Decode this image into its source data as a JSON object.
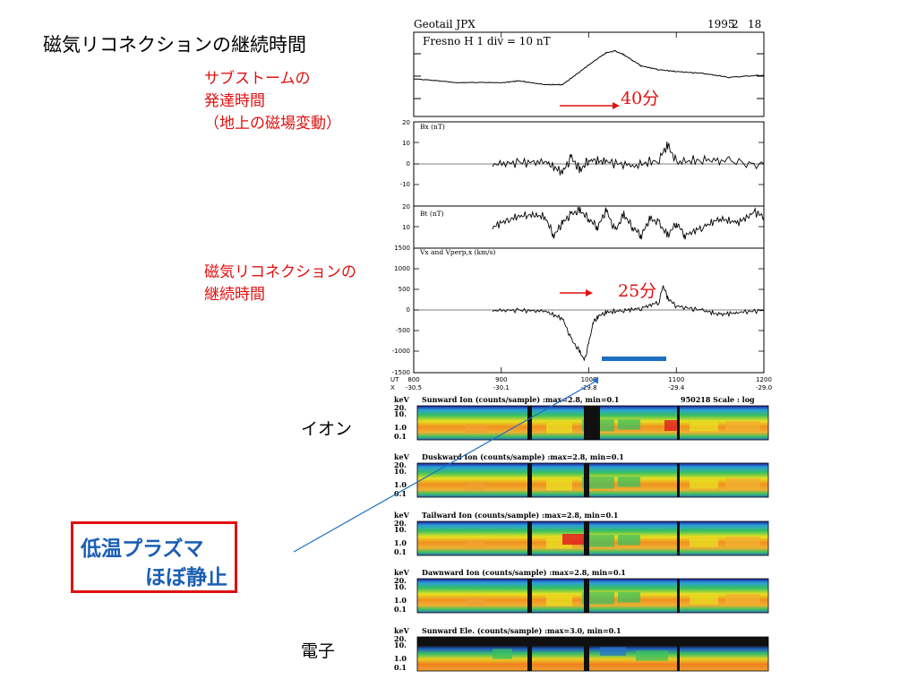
{
  "slide": {
    "title": "磁気リコネクションの継続時間",
    "notes": {
      "substorm_line1": "サブストームの",
      "substorm_line2": "発達時間",
      "substorm_line3": "（地上の磁場変動）",
      "reconnect_line1": "磁気リコネクションの",
      "reconnect_line2": "継続時間"
    },
    "duration_substorm": "40分",
    "duration_reconnect": "25分",
    "label_ion": "イオン",
    "label_electron": "電子",
    "callout_line1": "低温プラズマ",
    "callout_line2": "ほぼ静止"
  },
  "colors": {
    "red": "#e01010",
    "blue": "#1a5fb4",
    "bar_blue": "#1f6fc0"
  },
  "chart_data": [
    {
      "type": "line",
      "header_left": "Geotail   JPX",
      "header_year": "1995",
      "header_month": "2",
      "header_day": "18",
      "panel_label": "Fresno     H   1 div = 10 nT",
      "x": [
        800,
        850,
        900,
        920,
        950,
        970,
        990,
        1010,
        1020,
        1030,
        1040,
        1050,
        1060,
        1080,
        1100,
        1130,
        1160,
        1200
      ],
      "series": [
        {
          "values": [
            0,
            -2,
            -2,
            -1,
            -3,
            -3,
            4,
            11,
            14,
            15,
            13,
            10,
            7,
            5,
            4,
            3,
            1,
            2
          ]
        }
      ],
      "ylim": [
        -20,
        25
      ]
    },
    {
      "type": "line",
      "panel_label": "Bx (nT)",
      "yticks": [
        "20",
        "10",
        "0",
        "-10"
      ],
      "ylim": [
        -20,
        20
      ],
      "x": [
        890,
        920,
        950,
        970,
        980,
        990,
        1000,
        1020,
        1050,
        1080,
        1090,
        1100,
        1130,
        1160,
        1200
      ],
      "series": [
        {
          "values": [
            0,
            0.5,
            1,
            -4,
            3,
            -3,
            2,
            1,
            -1,
            2,
            9,
            1,
            2,
            1,
            0
          ]
        }
      ]
    },
    {
      "type": "line",
      "panel_label": "Bt (nT)",
      "yticks": [
        "20",
        "10"
      ],
      "ylim": [
        0,
        20
      ],
      "x": [
        890,
        910,
        930,
        950,
        960,
        970,
        980,
        990,
        1000,
        1010,
        1020,
        1030,
        1040,
        1050,
        1060,
        1070,
        1080,
        1090,
        1100,
        1110,
        1130,
        1150,
        1170,
        1190,
        1200
      ],
      "series": [
        {
          "values": [
            10,
            14,
            16,
            15,
            6,
            12,
            16,
            18,
            14,
            10,
            18,
            8,
            16,
            10,
            6,
            14,
            12,
            6,
            12,
            6,
            10,
            14,
            12,
            17,
            15
          ]
        }
      ]
    },
    {
      "type": "line",
      "panel_label": "Vx and Vperp,x (km/s)",
      "yticks": [
        "1500",
        "1000",
        "500",
        "0",
        "-500",
        "-1000",
        "-1500"
      ],
      "ylim": [
        -1500,
        1500
      ],
      "x": [
        890,
        920,
        950,
        970,
        980,
        990,
        995,
        1000,
        1005,
        1010,
        1020,
        1040,
        1060,
        1080,
        1085,
        1090,
        1100,
        1130,
        1150,
        1170,
        1200
      ],
      "series": [
        {
          "values": [
            0,
            0,
            -20,
            -200,
            -700,
            -1000,
            -1200,
            -800,
            -300,
            -150,
            -50,
            0,
            50,
            200,
            600,
            300,
            100,
            0,
            -100,
            -50,
            0
          ]
        }
      ]
    },
    {
      "type": "heatmap",
      "panels": [
        {
          "title": "Sunward Ion  (counts/sample) :max=2.8, min=0.1",
          "extra": "950218     Scale : log"
        },
        {
          "title": "Duskward Ion  (counts/sample) :max=2.8, min=0.1"
        },
        {
          "title": "Tailward Ion  (counts/sample) :max=2.8, min=0.1"
        },
        {
          "title": "Dawnward Ion  (counts/sample) :max=2.8, min=0.1"
        },
        {
          "title": "Sunward Ele. (counts/sample) :max=3.0, min=0.1"
        }
      ],
      "ylabel": "keV",
      "yticks": [
        "20.",
        "10.",
        "1.0",
        "0.1"
      ]
    }
  ],
  "axis": {
    "ut_label": "UT",
    "x_label": "X",
    "x_ticks": [
      "800",
      "900",
      "1000",
      "1100",
      "1200"
    ],
    "x_positions": [
      "-30.5",
      "-30.1",
      "-29.8",
      "-29.4",
      "-29.0"
    ]
  }
}
